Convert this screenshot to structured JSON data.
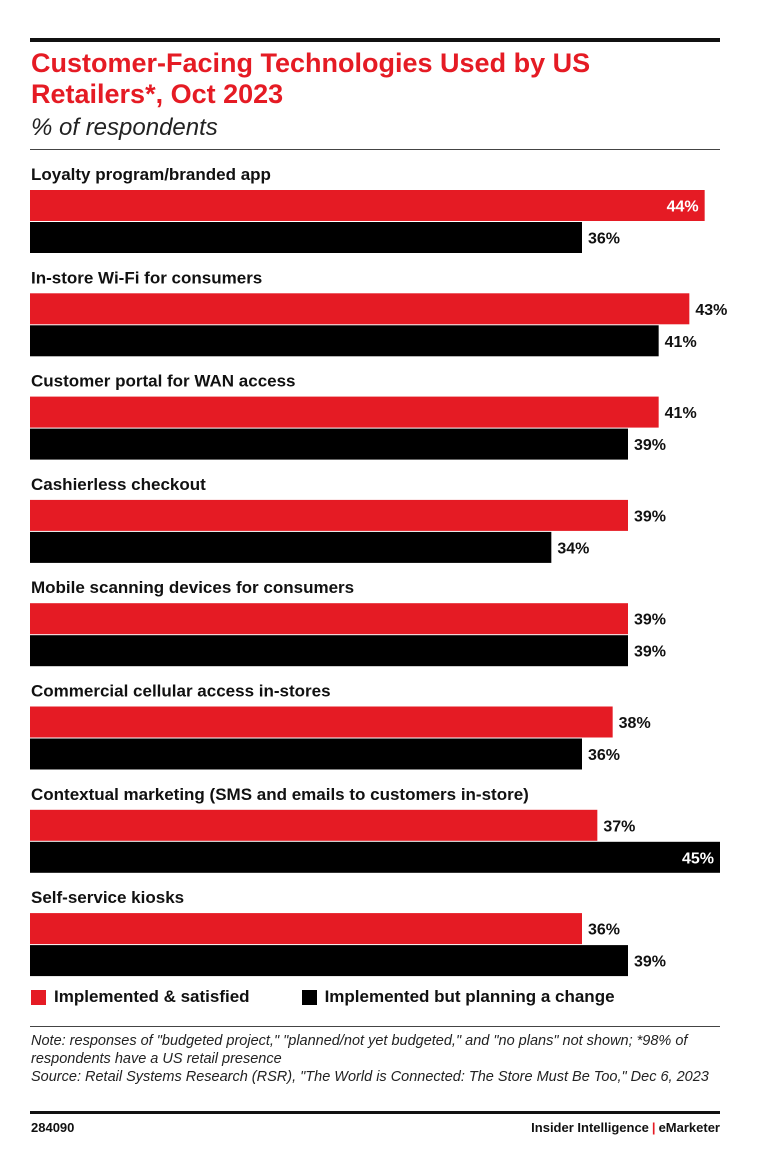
{
  "header": {
    "title": "Customer-Facing Technologies Used by US Retailers*, Oct 2023",
    "subtitle": "% of respondents"
  },
  "chart_data": {
    "type": "bar",
    "orientation": "horizontal",
    "categories": [
      "Loyalty program/branded app",
      "In-store Wi-Fi for consumers",
      "Customer portal for WAN access",
      "Cashierless checkout",
      "Mobile scanning devices for consumers",
      "Commercial cellular access in-stores",
      "Contextual marketing (SMS and emails to customers in-store)",
      "Self-service kiosks"
    ],
    "series": [
      {
        "name": "Implemented & satisfied",
        "color": "#e51b24",
        "values": [
          44,
          43,
          41,
          39,
          39,
          38,
          37,
          36
        ]
      },
      {
        "name": "Implemented but planning a change",
        "color": "#000000",
        "values": [
          36,
          41,
          39,
          34,
          39,
          36,
          45,
          39
        ]
      }
    ],
    "value_suffix": "%",
    "xlim": [
      0,
      45
    ],
    "grid": false,
    "legend_position": "bottom-left"
  },
  "note": {
    "line1": "Note: responses of \"budgeted project,\" \"planned/not yet budgeted,\" and \"no plans\" not shown; *98% of respondents have a US retail presence",
    "line2": "Source: Retail Systems Research (RSR), \"The World is Connected: The Store Must Be Too,\" Dec 6, 2023"
  },
  "footer": {
    "id": "284090",
    "brand_left": "Insider Intelligence",
    "separator": "|",
    "brand_right": "eMarketer"
  }
}
